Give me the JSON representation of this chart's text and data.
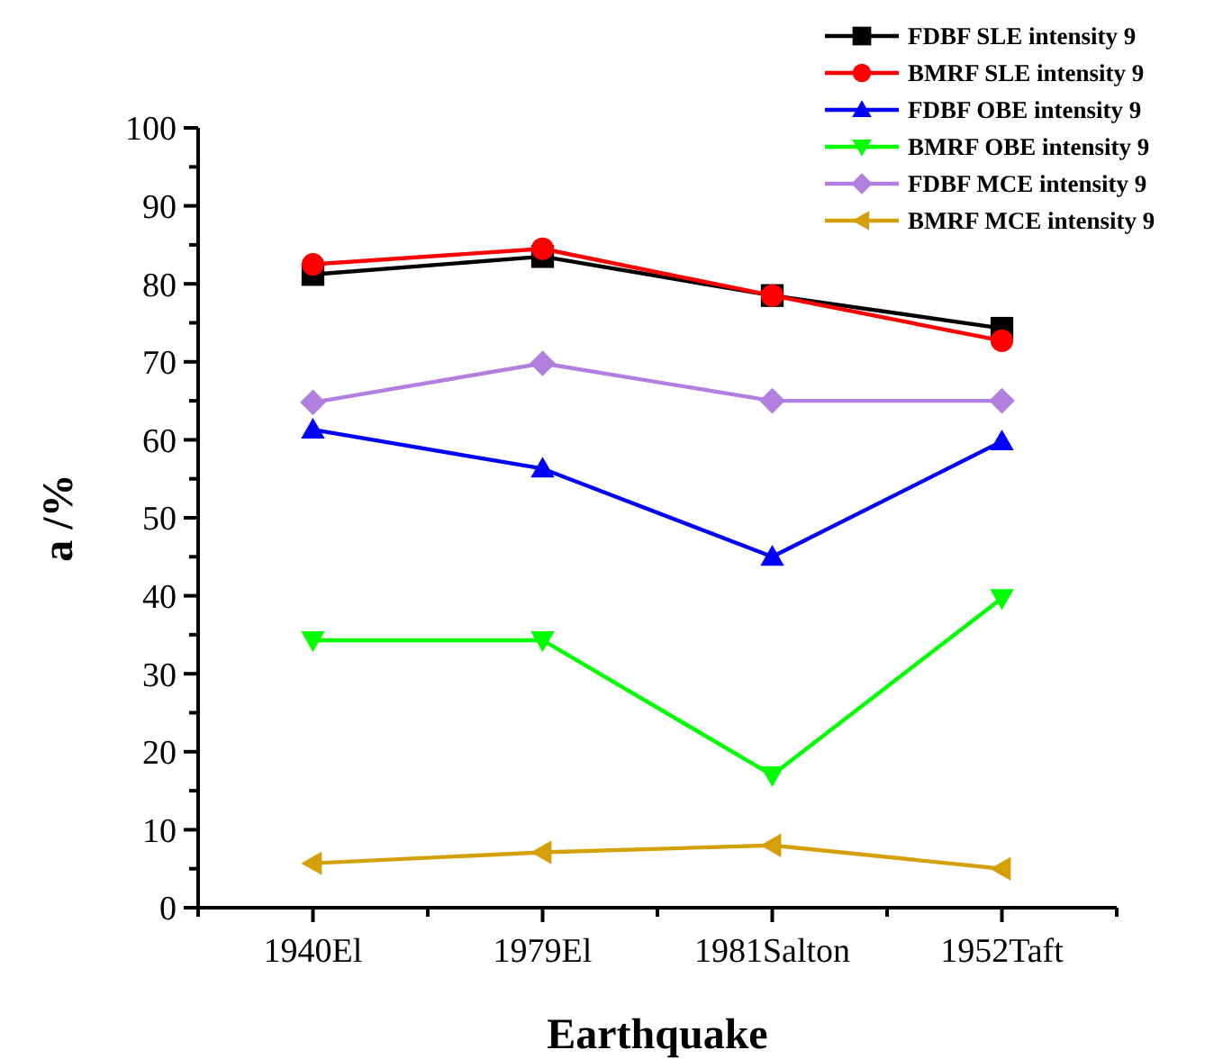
{
  "chart_data": {
    "type": "line",
    "xlabel": "Earthquake",
    "ylabel": "a /%",
    "categories": [
      "1940El",
      "1979El",
      "1981Salton",
      "1952Taft"
    ],
    "series": [
      {
        "name": "FDBF SLE intensity 9",
        "color": "#000000",
        "marker": "square",
        "values": [
          81.2,
          83.5,
          78.5,
          74.3
        ]
      },
      {
        "name": "BMRF SLE intensity 9",
        "color": "#ff0000",
        "marker": "circle",
        "values": [
          82.5,
          84.5,
          78.5,
          72.7
        ]
      },
      {
        "name": "FDBF OBE intensity 9",
        "color": "#0000ff",
        "marker": "triangle",
        "values": [
          61.3,
          56.3,
          45,
          59.8
        ]
      },
      {
        "name": "BMRF OBE intensity 9",
        "color": "#00ff00",
        "marker": "triangle-down",
        "values": [
          34.3,
          34.3,
          17,
          39.7
        ]
      },
      {
        "name": "FDBF MCE intensity 9",
        "color": "#b07fe0",
        "marker": "diamond",
        "values": [
          64.8,
          69.8,
          65,
          65
        ]
      },
      {
        "name": "BMRF MCE intensity 9",
        "color": "#d4a00a",
        "marker": "triangle-left",
        "values": [
          5.7,
          7.1,
          8,
          5
        ]
      }
    ],
    "ylim": [
      0,
      100
    ],
    "yticks": [
      0,
      {
        "value": 5,
        "label": null
      },
      10,
      {
        "value": 15,
        "label": null
      },
      20,
      {
        "value": 25,
        "label": null
      },
      30,
      {
        "value": 35,
        "label": null
      },
      40,
      {
        "value": 45,
        "label": null
      },
      50,
      {
        "value": 55,
        "label": null
      },
      60,
      {
        "value": 65,
        "label": null
      },
      70,
      {
        "value": 75,
        "label": null
      },
      80,
      {
        "value": 85,
        "label": null
      },
      90,
      {
        "value": 95,
        "label": null
      },
      100
    ],
    "grid": false,
    "legend": "top right",
    "line_style": "solid"
  }
}
